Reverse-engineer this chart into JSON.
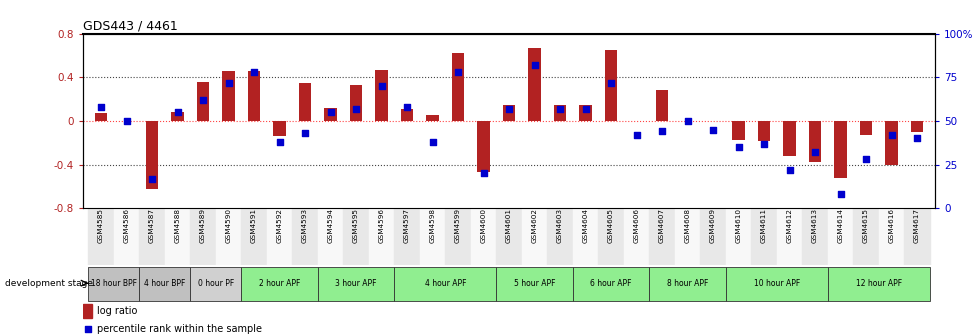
{
  "title": "GDS443 / 4461",
  "samples": [
    "GSM4585",
    "GSM4586",
    "GSM4587",
    "GSM4588",
    "GSM4589",
    "GSM4590",
    "GSM4591",
    "GSM4592",
    "GSM4593",
    "GSM4594",
    "GSM4595",
    "GSM4596",
    "GSM4597",
    "GSM4598",
    "GSM4599",
    "GSM4600",
    "GSM4601",
    "GSM4602",
    "GSM4603",
    "GSM4604",
    "GSM4605",
    "GSM4606",
    "GSM4607",
    "GSM4608",
    "GSM4609",
    "GSM4610",
    "GSM4611",
    "GSM4612",
    "GSM4613",
    "GSM4614",
    "GSM4615",
    "GSM4616",
    "GSM4617"
  ],
  "log_ratio": [
    0.07,
    0.0,
    -0.62,
    0.08,
    0.36,
    0.46,
    0.46,
    -0.14,
    0.35,
    0.12,
    0.33,
    0.47,
    0.11,
    0.05,
    0.62,
    -0.47,
    0.15,
    0.67,
    0.15,
    0.15,
    0.65,
    0.0,
    0.28,
    0.0,
    0.0,
    -0.17,
    -0.18,
    -0.32,
    -0.38,
    -0.52,
    -0.13,
    -0.4,
    -0.1
  ],
  "percentile": [
    58,
    50,
    17,
    55,
    62,
    72,
    78,
    38,
    43,
    55,
    57,
    70,
    58,
    38,
    78,
    20,
    57,
    82,
    57,
    57,
    72,
    42,
    44,
    50,
    45,
    35,
    37,
    22,
    32,
    8,
    28,
    42,
    40
  ],
  "ylim": [
    -0.8,
    0.8
  ],
  "yticks": [
    -0.8,
    -0.4,
    0.0,
    0.4,
    0.8
  ],
  "right_yticks": [
    0,
    25,
    50,
    75,
    100
  ],
  "bar_color": "#B22222",
  "dot_color": "#0000CD",
  "zero_line_color": "#FF4444",
  "grid_color": "#333333",
  "bg_color": "#FFFFFF",
  "groups": [
    {
      "label": "18 hour BPF",
      "start": 0,
      "end": 2,
      "color": "#C0C0C0"
    },
    {
      "label": "4 hour BPF",
      "start": 2,
      "end": 4,
      "color": "#C0C0C0"
    },
    {
      "label": "0 hour PF",
      "start": 4,
      "end": 6,
      "color": "#D0D0D0"
    },
    {
      "label": "2 hour APF",
      "start": 6,
      "end": 9,
      "color": "#90EE90"
    },
    {
      "label": "3 hour APF",
      "start": 9,
      "end": 12,
      "color": "#90EE90"
    },
    {
      "label": "4 hour APF",
      "start": 12,
      "end": 16,
      "color": "#90EE90"
    },
    {
      "label": "5 hour APF",
      "start": 16,
      "end": 19,
      "color": "#90EE90"
    },
    {
      "label": "6 hour APF",
      "start": 19,
      "end": 22,
      "color": "#90EE90"
    },
    {
      "label": "8 hour APF",
      "start": 22,
      "end": 25,
      "color": "#90EE90"
    },
    {
      "label": "10 hour APF",
      "start": 25,
      "end": 29,
      "color": "#90EE90"
    },
    {
      "label": "12 hour APF",
      "start": 29,
      "end": 33,
      "color": "#90EE90"
    }
  ]
}
